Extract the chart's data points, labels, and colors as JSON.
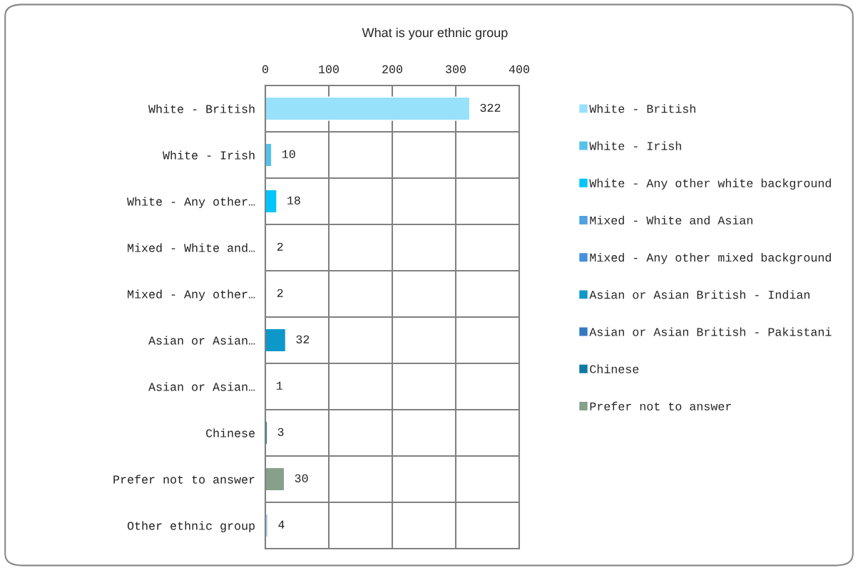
{
  "chart_data": {
    "type": "bar",
    "orientation": "horizontal",
    "title": "What is your ethnic group",
    "categories": [
      "White - British",
      "White - Irish",
      "White - Any other…",
      "Mixed - White and…",
      "Mixed - Any other…",
      "Asian or Asian…",
      "Asian or Asian…",
      "Chinese",
      "Prefer not to answer",
      "Other ethnic group"
    ],
    "series": [
      {
        "name": "White - British",
        "color": "#98e1fa",
        "values": [
          322,
          null,
          null,
          null,
          null,
          null,
          null,
          null,
          null,
          null
        ]
      },
      {
        "name": "White - Irish",
        "color": "#55c1e9",
        "values": [
          null,
          10,
          null,
          null,
          null,
          null,
          null,
          null,
          null,
          null
        ]
      },
      {
        "name": "White - Any other white background",
        "color": "#00c5ff",
        "values": [
          null,
          null,
          18,
          null,
          null,
          null,
          null,
          null,
          null,
          null
        ]
      },
      {
        "name": "Mixed - White and Asian",
        "color": "#50a2e0",
        "values": [
          null,
          null,
          null,
          2,
          null,
          null,
          null,
          null,
          null,
          null
        ]
      },
      {
        "name": "Mixed - Any other mixed background",
        "color": "#4690dc",
        "values": [
          null,
          null,
          null,
          null,
          2,
          null,
          null,
          null,
          null,
          null
        ]
      },
      {
        "name": "Asian or Asian British - Indian",
        "color": "#0e98ca",
        "values": [
          null,
          null,
          null,
          null,
          null,
          32,
          null,
          null,
          null,
          null
        ]
      },
      {
        "name": "Asian or Asian British - Pakistani",
        "color": "#3479c0",
        "values": [
          null,
          null,
          null,
          null,
          null,
          null,
          1,
          null,
          null,
          null
        ]
      },
      {
        "name": "Chinese",
        "color": "#0a7aa5",
        "values": [
          null,
          null,
          null,
          null,
          null,
          null,
          null,
          3,
          null,
          null
        ]
      },
      {
        "name": "Prefer not to answer",
        "color": "#86a08a",
        "values": [
          null,
          null,
          null,
          null,
          null,
          null,
          null,
          null,
          30,
          null
        ]
      },
      {
        "color": "#a6c8ef",
        "values": [
          null,
          null,
          null,
          null,
          null,
          null,
          null,
          null,
          null,
          4
        ]
      }
    ],
    "xlim": [
      0,
      400
    ],
    "xticks": [
      0,
      100,
      200,
      300,
      400
    ],
    "grid": true,
    "data_labels": true,
    "legend": "right"
  }
}
